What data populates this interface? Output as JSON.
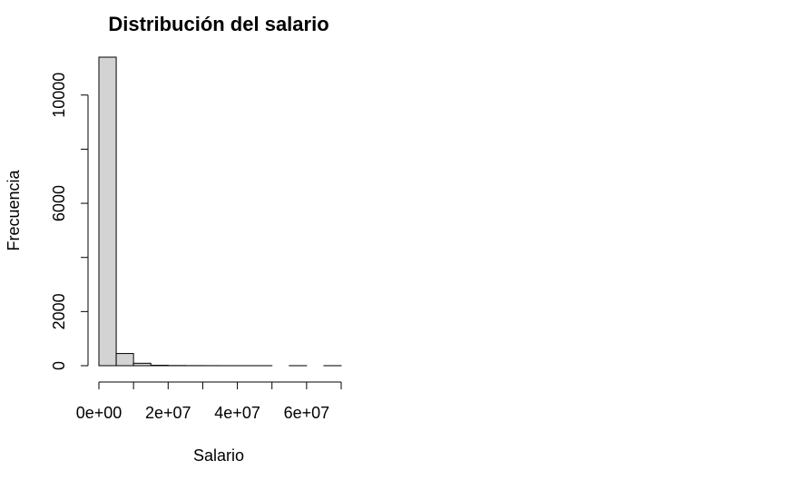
{
  "chart_data": {
    "type": "bar",
    "title": "Distribución del salario",
    "xlabel": "Salario",
    "ylabel": "Frecuencia",
    "bin_width": 5000000,
    "bins": [
      {
        "start": 0,
        "end": 5000000,
        "count": 11400
      },
      {
        "start": 5000000,
        "end": 10000000,
        "count": 450
      },
      {
        "start": 10000000,
        "end": 15000000,
        "count": 90
      },
      {
        "start": 15000000,
        "end": 20000000,
        "count": 15
      },
      {
        "start": 20000000,
        "end": 25000000,
        "count": 6
      },
      {
        "start": 25000000,
        "end": 30000000,
        "count": 3
      },
      {
        "start": 30000000,
        "end": 35000000,
        "count": 2
      },
      {
        "start": 35000000,
        "end": 40000000,
        "count": 1
      },
      {
        "start": 40000000,
        "end": 45000000,
        "count": 1
      },
      {
        "start": 45000000,
        "end": 50000000,
        "count": 1
      },
      {
        "start": 50000000,
        "end": 55000000,
        "count": 0
      },
      {
        "start": 55000000,
        "end": 60000000,
        "count": 1
      },
      {
        "start": 60000000,
        "end": 65000000,
        "count": 0
      },
      {
        "start": 65000000,
        "end": 70000000,
        "count": 1
      }
    ],
    "xlim": [
      0,
      70000000
    ],
    "ylim": [
      0,
      11400
    ],
    "x_ticks": [
      0,
      10000000,
      20000000,
      30000000,
      40000000,
      50000000,
      60000000,
      70000000
    ],
    "x_tick_labels": [
      {
        "value": 0,
        "label": "0e+00"
      },
      {
        "value": 20000000,
        "label": "2e+07"
      },
      {
        "value": 40000000,
        "label": "4e+07"
      },
      {
        "value": 60000000,
        "label": "6e+07"
      }
    ],
    "y_ticks": [
      0,
      2000,
      4000,
      6000,
      8000,
      10000
    ],
    "y_tick_labels": [
      {
        "value": 0,
        "label": "0"
      },
      {
        "value": 2000,
        "label": "2000"
      },
      {
        "value": 6000,
        "label": "6000"
      },
      {
        "value": 10000,
        "label": "10000"
      }
    ],
    "bar_fill": "#d3d3d3",
    "bar_stroke": "#000000",
    "grid": false,
    "legend": "none"
  }
}
